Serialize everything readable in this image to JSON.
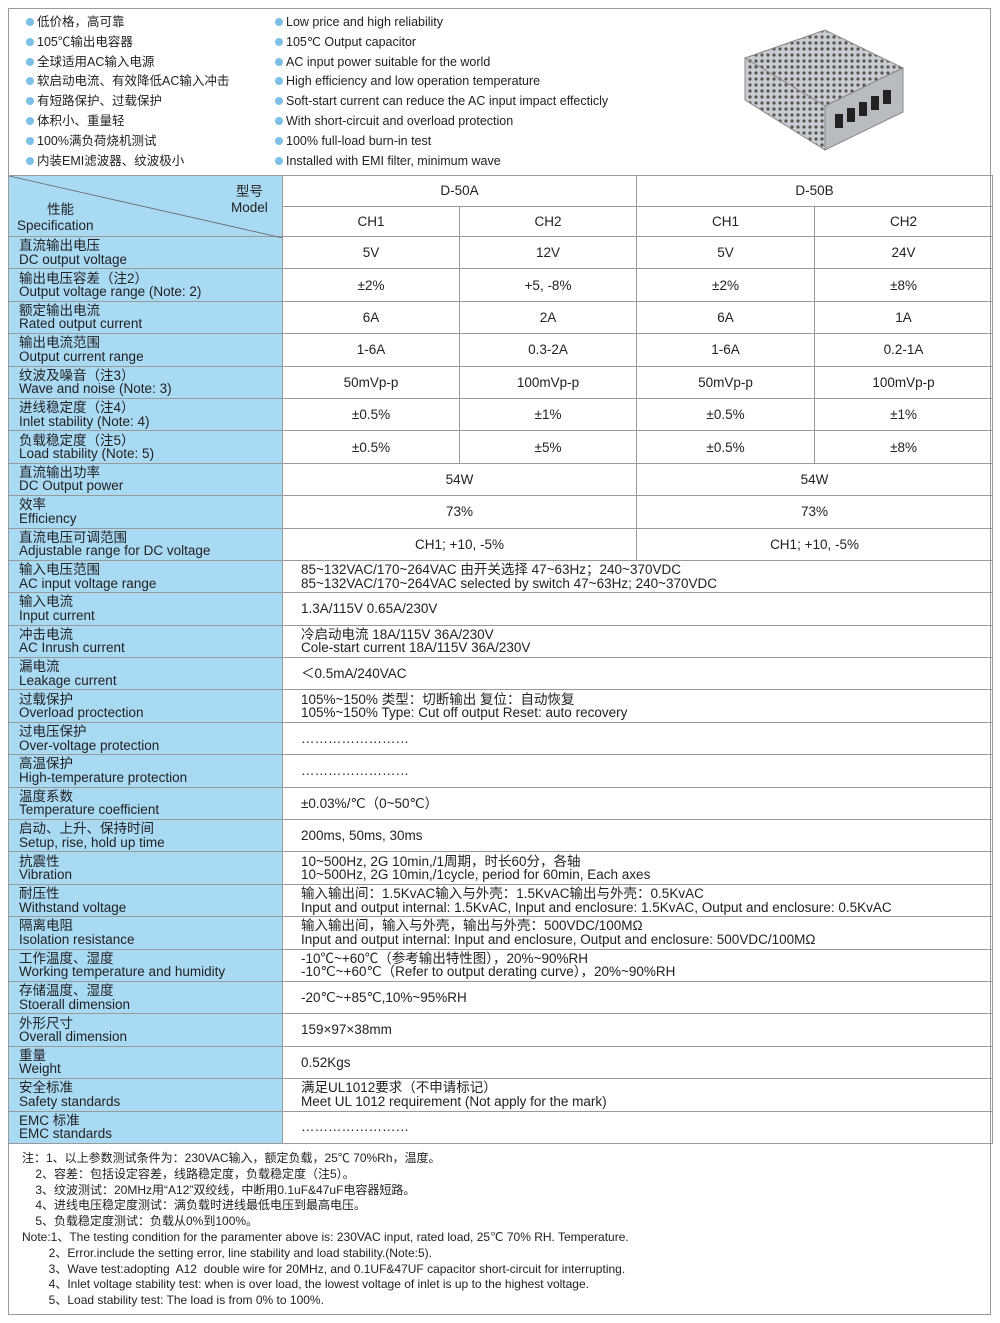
{
  "features_cn": [
    "低价格，高可靠",
    "105℃输出电容器",
    "全球适用AC输入电源",
    "软启动电流、有效降低AC输入冲击",
    "有短路保护、过载保护",
    "体积小、重量轻",
    "100%满负荷烧机测试",
    "内装EMI滤波器、纹波极小"
  ],
  "features_en": [
    "Low price and high reliability",
    "105℃ Output capacitor",
    "AC input power suitable for the world",
    "High efficiency and low operation temperature",
    "Soft-start current can reduce the AC input impact effecticly",
    "With short-circuit and overload protection",
    "100% full-load burn-in test",
    "Installed with EMI filter, minimum wave"
  ],
  "colors": {
    "label_bg": "#a9daf4",
    "bullet": "#7cc0e8",
    "border": "#9a9a9a"
  },
  "header": {
    "model_cn": "型号",
    "model_en": "Model",
    "spec_cn": "性能",
    "spec_en": "Specification",
    "models": [
      "D-50A",
      "D-50B"
    ],
    "channels": [
      "CH1",
      "CH2",
      "CH1",
      "CH2"
    ]
  },
  "rows": [
    {
      "cn": "直流输出电压",
      "en": "DC output voltage",
      "cells": [
        "5V",
        "12V",
        "5V",
        "24V"
      ]
    },
    {
      "cn": "输出电压容差（注2）",
      "en": "Output voltage range (Note: 2)",
      "cells": [
        "±2%",
        "+5, -8%",
        "±2%",
        "±8%"
      ]
    },
    {
      "cn": "额定输出电流",
      "en": "Rated output current",
      "cells": [
        "6A",
        "2A",
        "6A",
        "1A"
      ]
    },
    {
      "cn": "输出电流范围",
      "en": "Output current range",
      "cells": [
        "1-6A",
        "0.3-2A",
        "1-6A",
        "0.2-1A"
      ]
    },
    {
      "cn": "纹波及噪音（注3）",
      "en": "Wave and noise (Note: 3)",
      "cells": [
        "50mVp-p",
        "100mVp-p",
        "50mVp-p",
        "100mVp-p"
      ]
    },
    {
      "cn": "进线稳定度（注4）",
      "en": "Inlet stability (Note: 4)",
      "cells": [
        "±0.5%",
        "±1%",
        "±0.5%",
        "±1%"
      ]
    },
    {
      "cn": "负载稳定度（注5）",
      "en": "Load stability (Note: 5)",
      "cells": [
        "±0.5%",
        "±5%",
        "±0.5%",
        "±8%"
      ]
    },
    {
      "cn": "直流输出功率",
      "en": "DC Output power",
      "merged": [
        "54W",
        "54W"
      ]
    },
    {
      "cn": "效率",
      "en": "Efficiency",
      "merged": [
        "73%",
        "73%"
      ]
    },
    {
      "cn": "直流电压可调范围",
      "en": "Adjustable range for DC voltage",
      "merged": [
        "CH1; +10, -5%",
        "CH1; +10, -5%"
      ]
    },
    {
      "cn": "输入电压范围",
      "en": "AC input voltage range",
      "lines": [
        "85~132VAC/170~264VAC 由开关选择 47~63Hz；240~370VDC",
        "85~132VAC/170~264VAC selected by switch 47~63Hz; 240~370VDC"
      ]
    },
    {
      "cn": "输入电流",
      "en": "Input current",
      "lines": [
        "1.3A/115V  0.65A/230V"
      ]
    },
    {
      "cn": "冲击电流",
      "en": "AC Inrush current",
      "lines": [
        "冷启动电流  18A/115V  36A/230V",
        "Cole-start current 18A/115V  36A/230V"
      ]
    },
    {
      "cn": "漏电流",
      "en": "Leakage current",
      "lines": [
        "＜0.5mA/240VAC"
      ]
    },
    {
      "cn": "过载保护",
      "en": "Overload proctection",
      "lines": [
        "105%~150%  类型：切断输出  复位：自动恢复",
        "105%~150% Type: Cut off output  Reset: auto recovery"
      ]
    },
    {
      "cn": "过电压保护",
      "en": "Over-voltage protection",
      "lines": [
        "……………………"
      ]
    },
    {
      "cn": "高温保护",
      "en": "High-temperature protection",
      "lines": [
        "……………………"
      ]
    },
    {
      "cn": "温度系数",
      "en": "Temperature coefficient",
      "lines": [
        "±0.03%/℃（0~50℃）"
      ]
    },
    {
      "cn": "启动、上升、保持时间",
      "en": "Setup, rise, hold up time",
      "lines": [
        "200ms, 50ms, 30ms"
      ]
    },
    {
      "cn": "抗震性",
      "en": "Vibration",
      "lines": [
        "10~500Hz, 2G 10min,/1周期，时长60分，各轴",
        "10~500Hz, 2G 10min,/1cycle, period for 60min, Each axes"
      ]
    },
    {
      "cn": "耐压性",
      "en": "Withstand voltage",
      "lines": [
        "输入输出间：1.5KvAC输入与外壳：1.5KvAC输出与外壳：0.5KvAC",
        "Input and output internal: 1.5KvAC, Input and enclosure: 1.5KvAC, Output and enclosure: 0.5KvAC"
      ]
    },
    {
      "cn": "隔离电阻",
      "en": "Isolation resistance",
      "lines": [
        "输入输出间，输入与外壳，输出与外壳：500VDC/100MΩ",
        "Input and output internal: Input and enclosure, Output and enclosure: 500VDC/100MΩ"
      ]
    },
    {
      "cn": "工作温度、湿度",
      "en": "Working temperature and humidity",
      "lines": [
        "-10℃~+60℃（参考输出特性图），20%~90%RH",
        "-10℃~+60℃（Refer to output derating curve），20%~90%RH"
      ]
    },
    {
      "cn": "存储温度、湿度",
      "en": "Stoerall dimension",
      "lines": [
        "-20℃~+85℃,10%~95%RH"
      ]
    },
    {
      "cn": "外形尺寸",
      "en": "Overall dimension",
      "lines": [
        "159×97×38mm"
      ]
    },
    {
      "cn": "重量",
      "en": "Weight",
      "lines": [
        "0.52Kgs"
      ]
    },
    {
      "cn": "安全标准",
      "en": "Safety standards",
      "lines": [
        "满足UL1012要求（不申请标记）",
        "Meet UL 1012 requirement (Not apply for the mark)"
      ]
    },
    {
      "cn": "EMC 标准",
      "en": "EMC standards",
      "lines": [
        "……………………"
      ]
    }
  ],
  "notes": [
    "注：1、以上参数测试条件为：230VAC输入，额定负载，25℃ 70%Rh，温度。",
    "    2、容差：包括设定容差，线路稳定度，负载稳定度（注5）。",
    "    3、纹波测试：20MHz用“A12”双绞线，中断用0.1uF&47uF电容器短路。",
    "    4、进线电压稳定度测试：满负载时进线最低电压到最高电压。",
    "    5、负载稳定度测试：负载从0%到100%。",
    "Note:1、The testing condition for the paramenter above is: 230VAC input, rated load, 25℃ 70% RH. Temperature.",
    "        2、Error.include the setting error, line stability and load stability.(Note:5).",
    "        3、Wave test:adopting  A12  double wire for 20MHz, and 0.1UF&47UF capacitor short-circuit for interrupting.",
    "        4、Inlet voltage stability test: when is over load, the lowest voltage of inlet is up to the highest voltage.",
    "        5、Load stability test: The load is from 0% to 100%."
  ]
}
